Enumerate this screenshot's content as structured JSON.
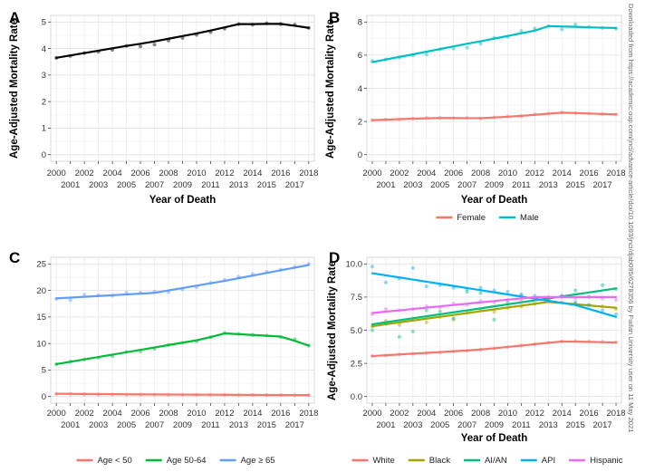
{
  "watermark": "Downloaded from https://academic.oup.com/jnci/advance-article/doi/10.1093/jnci/djab095/6278356 by Fudan University user on 11 May 2021",
  "chart_data": [
    {
      "panel": "A",
      "type": "line",
      "xlabel": "Year of Death",
      "ylabel": "Age-Adjusted Mortality Rate",
      "x": [
        2000,
        2001,
        2002,
        2003,
        2004,
        2005,
        2006,
        2007,
        2008,
        2009,
        2010,
        2011,
        2012,
        2013,
        2014,
        2015,
        2016,
        2017,
        2018
      ],
      "xlim": [
        1999.6,
        2018.4
      ],
      "ylim": [
        -0.25,
        5.25
      ],
      "yticks": [
        0,
        1,
        2,
        3,
        4,
        5
      ],
      "grid": true,
      "legend": "none",
      "series": [
        {
          "color": "#000000",
          "observed": [
            3.65,
            3.72,
            3.83,
            3.88,
            3.95,
            4.1,
            4.08,
            4.15,
            4.3,
            4.4,
            4.52,
            4.62,
            4.75,
            4.92,
            4.9,
            4.95,
            4.92,
            4.9,
            4.78
          ],
          "fitted": [
            3.65,
            3.74,
            3.83,
            3.92,
            4.01,
            4.1,
            4.18,
            4.27,
            4.37,
            4.47,
            4.57,
            4.68,
            4.8,
            4.92,
            4.92,
            4.93,
            4.93,
            4.86,
            4.78
          ]
        }
      ]
    },
    {
      "panel": "B",
      "type": "line",
      "xlabel": "Year of Death",
      "ylabel": "Age-Adjusted Mortality Rate",
      "x": [
        2000,
        2001,
        2002,
        2003,
        2004,
        2005,
        2006,
        2007,
        2008,
        2009,
        2010,
        2011,
        2012,
        2013,
        2014,
        2015,
        2016,
        2017,
        2018
      ],
      "xlim": [
        1999.6,
        2018.4
      ],
      "ylim": [
        -0.4,
        8.4
      ],
      "yticks": [
        0,
        2,
        4,
        6,
        8
      ],
      "grid": true,
      "legend": "bottom",
      "series": [
        {
          "name": "Female",
          "color": "#F8766D",
          "observed": [
            2.08,
            2.12,
            2.12,
            2.18,
            2.22,
            2.22,
            2.2,
            2.22,
            2.18,
            2.25,
            2.3,
            2.32,
            2.42,
            2.48,
            2.55,
            2.5,
            2.48,
            2.45,
            2.42
          ],
          "fitted": [
            2.08,
            2.11,
            2.14,
            2.17,
            2.19,
            2.21,
            2.21,
            2.2,
            2.2,
            2.24,
            2.29,
            2.34,
            2.4,
            2.47,
            2.53,
            2.51,
            2.48,
            2.45,
            2.43
          ]
        },
        {
          "name": "Male",
          "color": "#00BFC4",
          "observed": [
            5.65,
            5.75,
            5.85,
            5.98,
            6.05,
            6.35,
            6.4,
            6.45,
            6.7,
            7.05,
            7.1,
            7.45,
            7.6,
            7.75,
            7.55,
            7.85,
            7.7,
            7.65,
            7.6
          ],
          "fitted": [
            5.58,
            5.74,
            5.9,
            6.05,
            6.21,
            6.37,
            6.53,
            6.69,
            6.84,
            7.0,
            7.16,
            7.32,
            7.48,
            7.75,
            7.73,
            7.71,
            7.68,
            7.66,
            7.64
          ]
        }
      ]
    },
    {
      "panel": "C",
      "type": "line",
      "xlabel": "",
      "ylabel": "",
      "x": [
        2000,
        2001,
        2002,
        2003,
        2004,
        2005,
        2006,
        2007,
        2008,
        2009,
        2010,
        2011,
        2012,
        2013,
        2014,
        2015,
        2016,
        2017,
        2018
      ],
      "xlim": [
        1999.6,
        2018.4
      ],
      "ylim": [
        -1.25,
        26.25
      ],
      "yticks": [
        0,
        5,
        10,
        15,
        20,
        25
      ],
      "grid": true,
      "legend": "bottom",
      "series": [
        {
          "name": "Age < 50",
          "color": "#F8766D",
          "observed": [
            0.5,
            0.48,
            0.45,
            0.42,
            0.4,
            0.38,
            0.37,
            0.36,
            0.35,
            0.34,
            0.33,
            0.33,
            0.32,
            0.3,
            0.3,
            0.29,
            0.28,
            0.27,
            0.25
          ],
          "fitted": [
            0.52,
            0.5,
            0.48,
            0.46,
            0.44,
            0.42,
            0.4,
            0.39,
            0.37,
            0.36,
            0.35,
            0.34,
            0.33,
            0.32,
            0.31,
            0.3,
            0.29,
            0.28,
            0.26
          ]
        },
        {
          "name": "Age 50-64",
          "color": "#00BA38",
          "observed": [
            6.1,
            6.6,
            7.0,
            7.3,
            7.6,
            8.4,
            8.5,
            9.0,
            9.7,
            10.1,
            10.4,
            11.2,
            12.0,
            11.8,
            11.6,
            11.5,
            11.2,
            10.8,
            9.6
          ],
          "fitted": [
            6.1,
            6.55,
            7.0,
            7.45,
            7.9,
            8.35,
            8.8,
            9.25,
            9.7,
            10.15,
            10.6,
            11.2,
            11.9,
            11.75,
            11.6,
            11.45,
            11.3,
            10.5,
            9.6
          ]
        },
        {
          "name": "Age ≥ 65",
          "color": "#619CFF",
          "observed": [
            18.4,
            18.2,
            19.2,
            19.1,
            19.0,
            19.6,
            19.6,
            19.8,
            19.7,
            20.2,
            20.6,
            21.4,
            22.0,
            22.6,
            23.1,
            23.5,
            23.9,
            24.4,
            25.0
          ],
          "fitted": [
            18.5,
            18.65,
            18.8,
            18.95,
            19.1,
            19.25,
            19.4,
            19.55,
            20.0,
            20.45,
            20.9,
            21.35,
            21.8,
            22.3,
            22.8,
            23.3,
            23.8,
            24.3,
            24.8
          ]
        }
      ]
    },
    {
      "panel": "D",
      "type": "line",
      "xlabel": "Year of Death",
      "ylabel": "Age-Adjusted Mortality Rate",
      "x": [
        2000,
        2001,
        2002,
        2003,
        2004,
        2005,
        2006,
        2007,
        2008,
        2009,
        2010,
        2011,
        2012,
        2013,
        2014,
        2015,
        2016,
        2017,
        2018
      ],
      "xlim": [
        1999.6,
        2018.4
      ],
      "ylim": [
        -0.5,
        10.5
      ],
      "yticks": [
        0.0,
        2.5,
        5.0,
        7.5,
        10.0
      ],
      "ytick_labels": [
        "0.0",
        "2.5",
        "5.0",
        "7.5",
        "10.0"
      ],
      "grid": true,
      "legend": "bottom",
      "series": [
        {
          "name": "White",
          "color": "#F8766D",
          "observed": [
            3.05,
            3.1,
            3.18,
            3.22,
            3.28,
            3.32,
            3.4,
            3.45,
            3.55,
            3.62,
            3.72,
            3.85,
            3.95,
            4.05,
            4.15,
            4.18,
            4.15,
            4.12,
            4.1
          ],
          "fitted": [
            3.05,
            3.11,
            3.17,
            3.23,
            3.29,
            3.35,
            3.41,
            3.47,
            3.55,
            3.64,
            3.74,
            3.84,
            3.95,
            4.05,
            4.15,
            4.14,
            4.12,
            4.1,
            4.08
          ]
        },
        {
          "name": "Black",
          "color": "#A3A500",
          "observed": [
            5.3,
            5.7,
            5.4,
            5.9,
            5.6,
            6.0,
            5.8,
            6.3,
            6.5,
            6.4,
            6.7,
            6.8,
            7.0,
            7.2,
            7.1,
            7.0,
            6.9,
            6.8,
            6.6
          ],
          "fitted": [
            5.3,
            5.45,
            5.59,
            5.73,
            5.87,
            6.01,
            6.15,
            6.29,
            6.43,
            6.57,
            6.71,
            6.85,
            6.99,
            7.13,
            7.05,
            6.96,
            6.87,
            6.78,
            6.69
          ]
        },
        {
          "name": "AI/AN",
          "color": "#00BF7D",
          "observed": [
            5.0,
            5.5,
            4.5,
            4.9,
            6.5,
            6.4,
            5.9,
            7.9,
            7.8,
            5.8,
            7.1,
            7.6,
            7.4,
            7.3,
            7.6,
            8.0,
            7.5,
            8.4,
            8.1
          ],
          "fitted": [
            5.45,
            5.6,
            5.75,
            5.9,
            6.05,
            6.2,
            6.35,
            6.5,
            6.65,
            6.8,
            6.95,
            7.1,
            7.25,
            7.4,
            7.55,
            7.7,
            7.85,
            8.0,
            8.15
          ]
        },
        {
          "name": "API",
          "color": "#00B0F6",
          "observed": [
            9.8,
            8.6,
            8.9,
            9.7,
            8.3,
            8.4,
            8.2,
            8.1,
            8.2,
            8.0,
            7.9,
            7.7,
            7.6,
            7.4,
            7.5,
            7.1,
            6.9,
            6.5,
            6.2
          ],
          "fitted": [
            9.3,
            9.14,
            8.98,
            8.82,
            8.66,
            8.5,
            8.34,
            8.18,
            8.02,
            7.86,
            7.7,
            7.54,
            7.38,
            7.22,
            7.06,
            6.9,
            6.6,
            6.3,
            6.0
          ]
        },
        {
          "name": "Hispanic",
          "color": "#E76BF3",
          "observed": [
            6.2,
            6.6,
            6.5,
            6.6,
            6.8,
            6.7,
            7.0,
            6.9,
            7.2,
            7.1,
            7.3,
            7.2,
            7.4,
            7.5,
            7.6,
            7.4,
            7.5,
            7.4,
            7.3
          ],
          "fitted": [
            6.3,
            6.4,
            6.5,
            6.6,
            6.7,
            6.8,
            6.9,
            7.0,
            7.1,
            7.2,
            7.3,
            7.4,
            7.5,
            7.5,
            7.5,
            7.5,
            7.5,
            7.5,
            7.5
          ]
        }
      ]
    }
  ]
}
